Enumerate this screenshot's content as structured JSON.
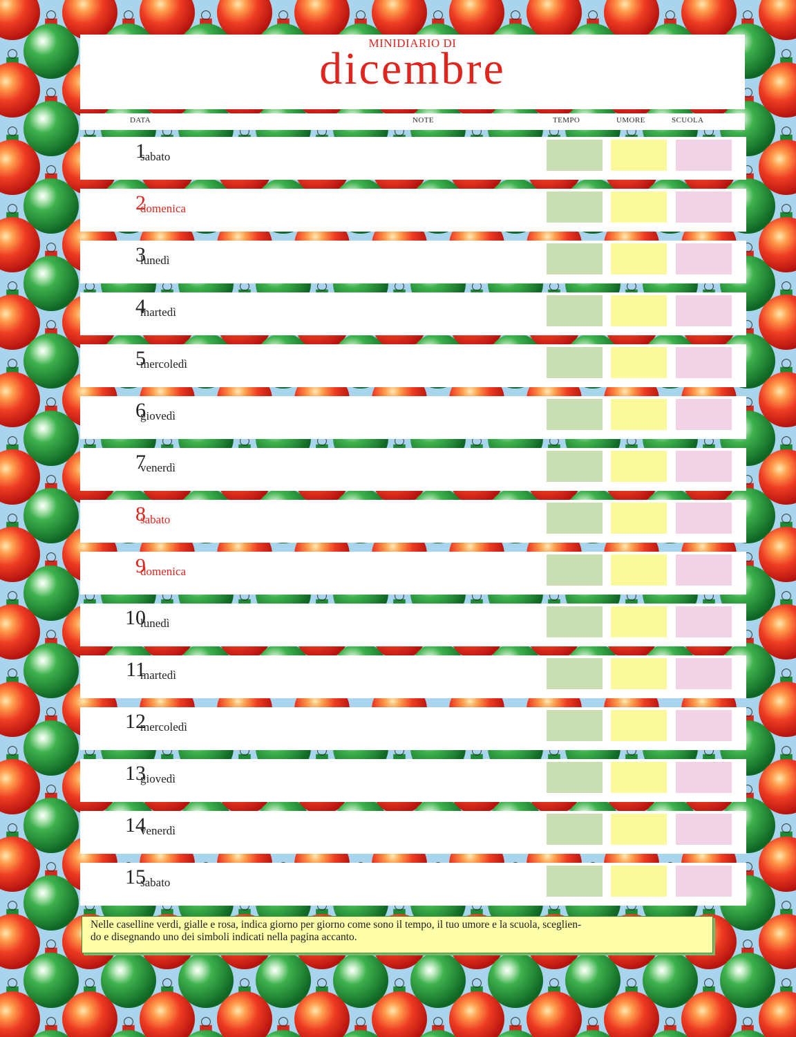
{
  "title": {
    "small": "MINIDIARIO DI",
    "big": "dicembre"
  },
  "headers": {
    "data": "DATA",
    "note": "NOTE",
    "tempo": "TEMPO",
    "umore": "UMORE",
    "scuola": "SCUOLA"
  },
  "days": [
    {
      "num": "1",
      "name": "sabato",
      "holiday": false
    },
    {
      "num": "2",
      "name": "domenica",
      "holiday": true
    },
    {
      "num": "3",
      "name": "lunedì",
      "holiday": false
    },
    {
      "num": "4",
      "name": "martedì",
      "holiday": false
    },
    {
      "num": "5",
      "name": "mercoledì",
      "holiday": false
    },
    {
      "num": "6",
      "name": "giovedì",
      "holiday": false
    },
    {
      "num": "7",
      "name": "venerdì",
      "holiday": false
    },
    {
      "num": "8",
      "name": "sabato",
      "holiday": true
    },
    {
      "num": "9",
      "name": "domenica",
      "holiday": true
    },
    {
      "num": "10",
      "name": "lunedì",
      "holiday": false
    },
    {
      "num": "11",
      "name": "martedì",
      "holiday": false
    },
    {
      "num": "12",
      "name": "mercoledì",
      "holiday": false
    },
    {
      "num": "13",
      "name": "giovedì",
      "holiday": false
    },
    {
      "num": "14",
      "name": "venerdì",
      "holiday": false
    },
    {
      "num": "15",
      "name": "sabato",
      "holiday": false
    }
  ],
  "instructions": {
    "line1": "Nelle caselline verdi, gialle e rosa, indica giorno per giorno come sono il tempo, il tuo umore e la scuola, sceglien-",
    "line2": "do e disegnando uno dei simboli indicati nella pagina accanto."
  },
  "colors": {
    "background": "#a9d4ee",
    "title_red": "#e0241e",
    "tempo_box": "#c9dfb3",
    "umore_box": "#fafa9d",
    "scuola_box": "#f2d3e6",
    "ornament_red": "#e0241e",
    "ornament_green": "#1f9a3a"
  }
}
